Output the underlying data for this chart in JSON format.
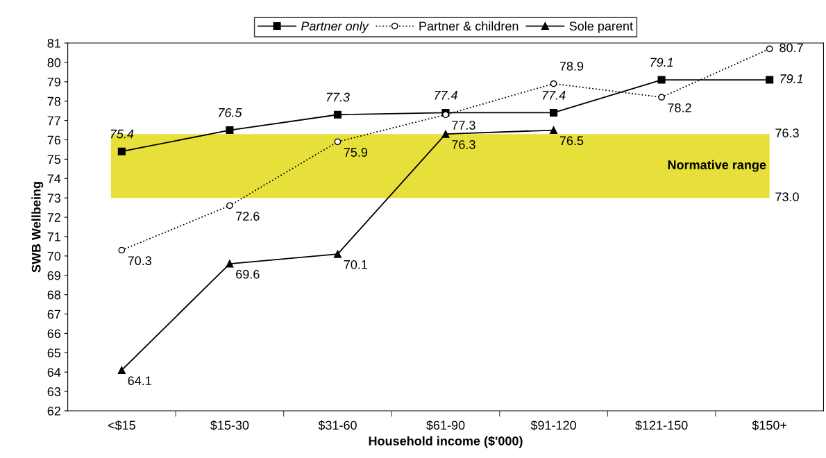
{
  "chart_data": {
    "type": "line",
    "xlabel": "Household income ($'000)",
    "ylabel": "SWB Wellbeing",
    "categories": [
      "<$15",
      "$15-30",
      "$31-60",
      "$61-90",
      "$91-120",
      "$121-150",
      "$150+"
    ],
    "series": [
      {
        "name": "Partner only",
        "color": "#000000",
        "marker": "square",
        "line_style": "solid",
        "values": [
          75.4,
          76.5,
          77.3,
          77.4,
          77.4,
          79.1,
          79.1
        ]
      },
      {
        "name": "Partner & children",
        "color": "#000000",
        "marker": "circle",
        "line_style": "dotted",
        "values": [
          70.3,
          72.6,
          75.9,
          77.3,
          78.9,
          78.2,
          80.7
        ]
      },
      {
        "name": "Sole parent",
        "color": "#000000",
        "marker": "triangle",
        "line_style": "solid",
        "values": [
          64.1,
          69.6,
          70.1,
          76.3,
          76.5,
          null,
          null
        ]
      }
    ],
    "ylim": [
      62,
      81
    ],
    "yticks": [
      62,
      63,
      64,
      65,
      66,
      67,
      68,
      69,
      70,
      71,
      72,
      73,
      74,
      75,
      76,
      77,
      78,
      79,
      80,
      81
    ],
    "bands": [
      {
        "axis": "y",
        "from": 73.0,
        "to": 76.3,
        "label": "Normative range",
        "color": "#e8e03a"
      }
    ],
    "annotations": [
      "76.3",
      "73.0"
    ],
    "data_labels": true,
    "grid": false,
    "legend": "top"
  }
}
